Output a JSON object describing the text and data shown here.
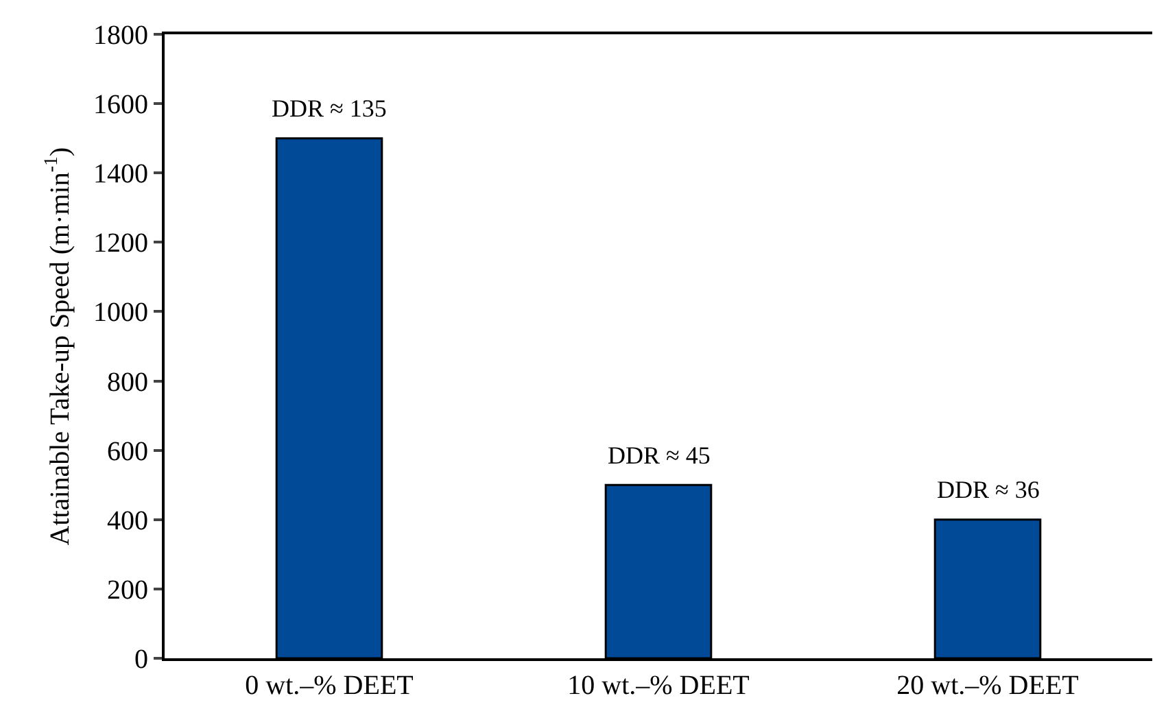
{
  "chart_data": {
    "type": "bar",
    "ylabel": "Attainable Take-up Speed (m·min$^{-1}$)",
    "categories": [
      "0 wt.–% DEET",
      "10 wt.–% DEET",
      "20 wt.–% DEET"
    ],
    "values": [
      1500,
      500,
      400
    ],
    "color": "#004a98",
    "ylim": [
      0,
      1800
    ],
    "yticks": [
      0,
      200,
      400,
      600,
      800,
      1000,
      1200,
      1400,
      1600,
      1800
    ],
    "annotations": [
      {
        "text": "DDR ≈ 135",
        "x": "0 wt.–% DEET",
        "y": 1500
      },
      {
        "text": "DDR ≈ 45",
        "x": "10 wt.–% DEET",
        "y": 500
      },
      {
        "text": "DDR ≈ 36",
        "x": "20 wt.–% DEET",
        "y": 400
      }
    ]
  }
}
